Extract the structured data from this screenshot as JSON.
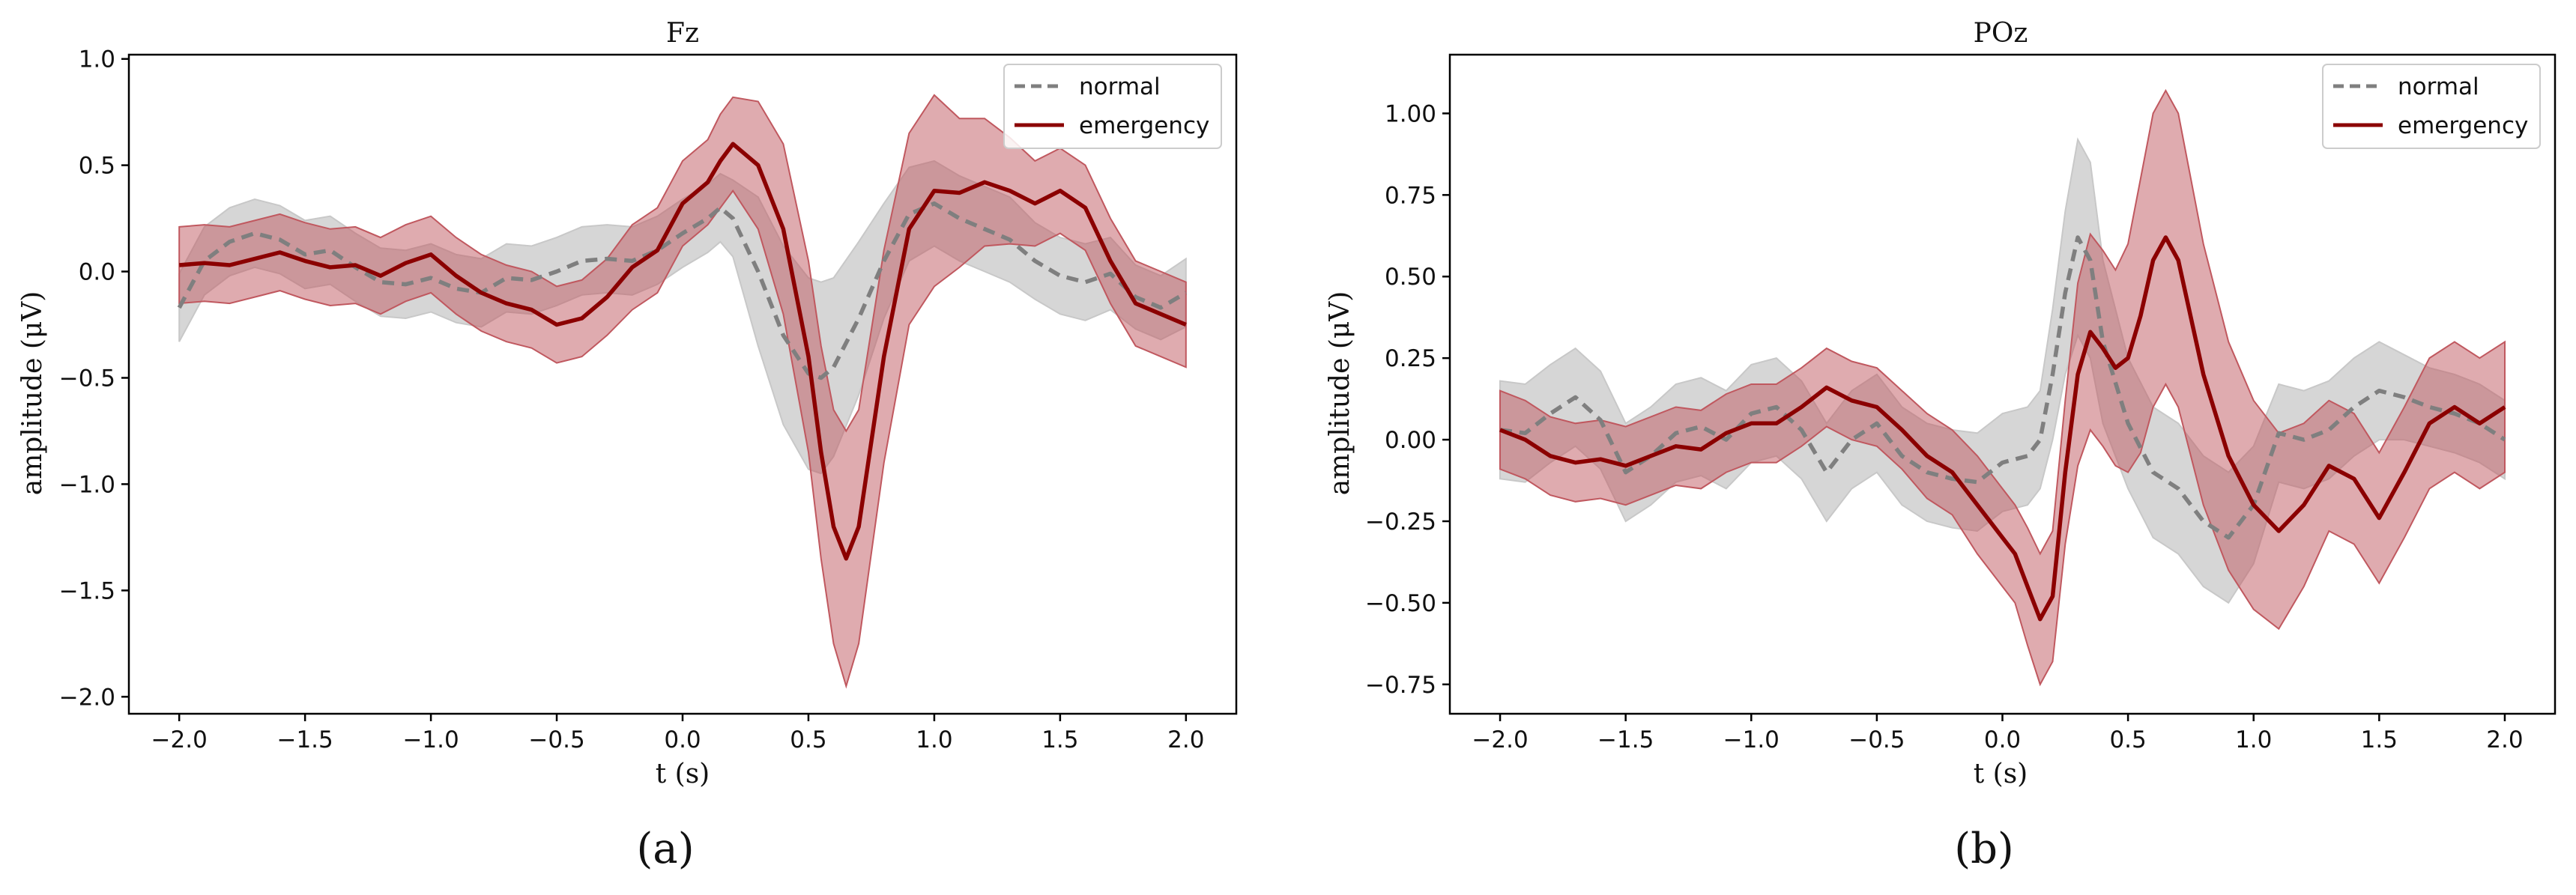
{
  "colors": {
    "normal_line": "#7f7f7f",
    "normal_band": "#c8c8c8",
    "emergency_line": "#8b0000",
    "emergency_band": "#c0585f",
    "axis": "#000000"
  },
  "chart_data": [
    {
      "type": "line",
      "panel": "(a)",
      "title": "Fz",
      "xlabel": "t (s)",
      "ylabel": "amplitude (μV)",
      "xlim": [
        -2.2,
        2.2
      ],
      "ylim": [
        -2.08,
        1.02
      ],
      "xticks": [
        -2.0,
        -1.5,
        -1.0,
        -0.5,
        0.0,
        0.5,
        1.0,
        1.5,
        2.0
      ],
      "xtick_labels": [
        "−2.0",
        "−1.5",
        "−1.0",
        "−0.5",
        "0.0",
        "0.5",
        "1.0",
        "1.5",
        "2.0"
      ],
      "yticks": [
        -2.0,
        -1.5,
        -1.0,
        -0.5,
        0.0,
        0.5,
        1.0
      ],
      "ytick_labels": [
        "−2.0",
        "−1.5",
        "−1.0",
        "−0.5",
        "0.0",
        "0.5",
        "1.0"
      ],
      "legend_position": "top-right",
      "series": [
        {
          "name": "normal",
          "style": "dashed",
          "points": [
            [
              -2.0,
              -0.17
            ],
            [
              -1.9,
              0.05
            ],
            [
              -1.8,
              0.14
            ],
            [
              -1.7,
              0.18
            ],
            [
              -1.6,
              0.15
            ],
            [
              -1.5,
              0.08
            ],
            [
              -1.4,
              0.1
            ],
            [
              -1.3,
              0.02
            ],
            [
              -1.2,
              -0.05
            ],
            [
              -1.1,
              -0.06
            ],
            [
              -1.0,
              -0.03
            ],
            [
              -0.9,
              -0.08
            ],
            [
              -0.8,
              -0.1
            ],
            [
              -0.7,
              -0.03
            ],
            [
              -0.6,
              -0.04
            ],
            [
              -0.5,
              0.0
            ],
            [
              -0.4,
              0.05
            ],
            [
              -0.3,
              0.06
            ],
            [
              -0.2,
              0.05
            ],
            [
              -0.1,
              0.1
            ],
            [
              0.0,
              0.18
            ],
            [
              0.1,
              0.25
            ],
            [
              0.15,
              0.3
            ],
            [
              0.2,
              0.25
            ],
            [
              0.3,
              0.0
            ],
            [
              0.4,
              -0.3
            ],
            [
              0.5,
              -0.48
            ],
            [
              0.55,
              -0.5
            ],
            [
              0.6,
              -0.45
            ],
            [
              0.7,
              -0.22
            ],
            [
              0.8,
              0.05
            ],
            [
              0.9,
              0.27
            ],
            [
              1.0,
              0.32
            ],
            [
              1.1,
              0.25
            ],
            [
              1.2,
              0.2
            ],
            [
              1.3,
              0.15
            ],
            [
              1.4,
              0.05
            ],
            [
              1.5,
              -0.02
            ],
            [
              1.6,
              -0.05
            ],
            [
              1.7,
              -0.01
            ],
            [
              1.8,
              -0.12
            ],
            [
              1.9,
              -0.17
            ],
            [
              2.0,
              -0.1
            ]
          ],
          "band": [
            0.16,
            0.16,
            0.16,
            0.16,
            0.16,
            0.16,
            0.16,
            0.16,
            0.16,
            0.16,
            0.16,
            0.16,
            0.16,
            0.16,
            0.16,
            0.16,
            0.16,
            0.16,
            0.16,
            0.16,
            0.16,
            0.16,
            0.16,
            0.18,
            0.35,
            0.42,
            0.45,
            0.45,
            0.42,
            0.36,
            0.27,
            0.22,
            0.2,
            0.2,
            0.2,
            0.2,
            0.18,
            0.18,
            0.18,
            0.17,
            0.15,
            0.15,
            0.16
          ]
        },
        {
          "name": "emergency",
          "style": "solid",
          "points": [
            [
              -2.0,
              0.03
            ],
            [
              -1.9,
              0.04
            ],
            [
              -1.8,
              0.03
            ],
            [
              -1.7,
              0.06
            ],
            [
              -1.6,
              0.09
            ],
            [
              -1.5,
              0.05
            ],
            [
              -1.4,
              0.02
            ],
            [
              -1.3,
              0.03
            ],
            [
              -1.2,
              -0.02
            ],
            [
              -1.1,
              0.04
            ],
            [
              -1.0,
              0.08
            ],
            [
              -0.9,
              -0.02
            ],
            [
              -0.8,
              -0.1
            ],
            [
              -0.7,
              -0.15
            ],
            [
              -0.6,
              -0.18
            ],
            [
              -0.5,
              -0.25
            ],
            [
              -0.4,
              -0.22
            ],
            [
              -0.3,
              -0.12
            ],
            [
              -0.2,
              0.02
            ],
            [
              -0.1,
              0.1
            ],
            [
              0.0,
              0.32
            ],
            [
              0.1,
              0.42
            ],
            [
              0.15,
              0.52
            ],
            [
              0.2,
              0.6
            ],
            [
              0.3,
              0.5
            ],
            [
              0.4,
              0.2
            ],
            [
              0.5,
              -0.4
            ],
            [
              0.55,
              -0.85
            ],
            [
              0.6,
              -1.2
            ],
            [
              0.65,
              -1.35
            ],
            [
              0.7,
              -1.2
            ],
            [
              0.8,
              -0.4
            ],
            [
              0.9,
              0.2
            ],
            [
              1.0,
              0.38
            ],
            [
              1.1,
              0.37
            ],
            [
              1.2,
              0.42
            ],
            [
              1.3,
              0.38
            ],
            [
              1.4,
              0.32
            ],
            [
              1.5,
              0.38
            ],
            [
              1.6,
              0.3
            ],
            [
              1.7,
              0.05
            ],
            [
              1.8,
              -0.15
            ],
            [
              1.9,
              -0.2
            ],
            [
              2.0,
              -0.25
            ]
          ],
          "band": [
            0.18,
            0.18,
            0.18,
            0.18,
            0.18,
            0.18,
            0.18,
            0.18,
            0.18,
            0.18,
            0.18,
            0.18,
            0.18,
            0.18,
            0.18,
            0.18,
            0.18,
            0.18,
            0.2,
            0.2,
            0.2,
            0.2,
            0.22,
            0.22,
            0.3,
            0.4,
            0.45,
            0.5,
            0.55,
            0.6,
            0.55,
            0.5,
            0.45,
            0.45,
            0.35,
            0.3,
            0.25,
            0.2,
            0.2,
            0.2,
            0.2,
            0.2,
            0.2,
            0.2
          ]
        }
      ],
      "caption": "(a)"
    },
    {
      "type": "line",
      "panel": "(b)",
      "title": "POz",
      "xlabel": "t (s)",
      "ylabel": "amplitude (μV)",
      "xlim": [
        -2.2,
        2.2
      ],
      "ylim": [
        -0.84,
        1.18
      ],
      "xticks": [
        -2.0,
        -1.5,
        -1.0,
        -0.5,
        0.0,
        0.5,
        1.0,
        1.5,
        2.0
      ],
      "xtick_labels": [
        "−2.0",
        "−1.5",
        "−1.0",
        "−0.5",
        "0.0",
        "0.5",
        "1.0",
        "1.5",
        "2.0"
      ],
      "yticks": [
        -0.75,
        -0.5,
        -0.25,
        0.0,
        0.25,
        0.5,
        0.75,
        1.0
      ],
      "ytick_labels": [
        "−0.75",
        "−0.50",
        "−0.25",
        "0.00",
        "0.25",
        "0.50",
        "0.75",
        "1.00"
      ],
      "legend_position": "top-right",
      "series": [
        {
          "name": "normal",
          "style": "dashed",
          "points": [
            [
              -2.0,
              0.03
            ],
            [
              -1.9,
              0.02
            ],
            [
              -1.8,
              0.08
            ],
            [
              -1.7,
              0.13
            ],
            [
              -1.6,
              0.06
            ],
            [
              -1.5,
              -0.1
            ],
            [
              -1.4,
              -0.05
            ],
            [
              -1.3,
              0.02
            ],
            [
              -1.2,
              0.04
            ],
            [
              -1.1,
              0.0
            ],
            [
              -1.0,
              0.08
            ],
            [
              -0.9,
              0.1
            ],
            [
              -0.8,
              0.03
            ],
            [
              -0.7,
              -0.1
            ],
            [
              -0.6,
              0.0
            ],
            [
              -0.5,
              0.05
            ],
            [
              -0.4,
              -0.05
            ],
            [
              -0.3,
              -0.1
            ],
            [
              -0.2,
              -0.12
            ],
            [
              -0.1,
              -0.13
            ],
            [
              0.0,
              -0.07
            ],
            [
              0.1,
              -0.05
            ],
            [
              0.15,
              0.0
            ],
            [
              0.2,
              0.2
            ],
            [
              0.25,
              0.45
            ],
            [
              0.3,
              0.62
            ],
            [
              0.35,
              0.55
            ],
            [
              0.4,
              0.3
            ],
            [
              0.5,
              0.05
            ],
            [
              0.6,
              -0.1
            ],
            [
              0.7,
              -0.15
            ],
            [
              0.8,
              -0.25
            ],
            [
              0.9,
              -0.3
            ],
            [
              1.0,
              -0.2
            ],
            [
              1.1,
              0.02
            ],
            [
              1.2,
              0.0
            ],
            [
              1.3,
              0.03
            ],
            [
              1.4,
              0.1
            ],
            [
              1.5,
              0.15
            ],
            [
              1.6,
              0.13
            ],
            [
              1.7,
              0.1
            ],
            [
              1.8,
              0.08
            ],
            [
              1.9,
              0.05
            ],
            [
              2.0,
              0.0
            ]
          ],
          "band": [
            0.15,
            0.15,
            0.15,
            0.15,
            0.15,
            0.15,
            0.15,
            0.15,
            0.15,
            0.15,
            0.15,
            0.15,
            0.15,
            0.15,
            0.15,
            0.15,
            0.15,
            0.15,
            0.15,
            0.15,
            0.15,
            0.15,
            0.15,
            0.2,
            0.25,
            0.3,
            0.3,
            0.25,
            0.2,
            0.2,
            0.2,
            0.2,
            0.2,
            0.18,
            0.15,
            0.15,
            0.15,
            0.15,
            0.15,
            0.13,
            0.12,
            0.12,
            0.12,
            0.12
          ]
        },
        {
          "name": "emergency",
          "style": "solid",
          "points": [
            [
              -2.0,
              0.03
            ],
            [
              -1.9,
              0.0
            ],
            [
              -1.8,
              -0.05
            ],
            [
              -1.7,
              -0.07
            ],
            [
              -1.6,
              -0.06
            ],
            [
              -1.5,
              -0.08
            ],
            [
              -1.4,
              -0.05
            ],
            [
              -1.3,
              -0.02
            ],
            [
              -1.2,
              -0.03
            ],
            [
              -1.1,
              0.02
            ],
            [
              -1.0,
              0.05
            ],
            [
              -0.9,
              0.05
            ],
            [
              -0.8,
              0.1
            ],
            [
              -0.7,
              0.16
            ],
            [
              -0.6,
              0.12
            ],
            [
              -0.5,
              0.1
            ],
            [
              -0.4,
              0.03
            ],
            [
              -0.3,
              -0.05
            ],
            [
              -0.2,
              -0.1
            ],
            [
              -0.1,
              -0.2
            ],
            [
              0.0,
              -0.3
            ],
            [
              0.05,
              -0.35
            ],
            [
              0.1,
              -0.45
            ],
            [
              0.15,
              -0.55
            ],
            [
              0.2,
              -0.48
            ],
            [
              0.25,
              -0.1
            ],
            [
              0.3,
              0.2
            ],
            [
              0.35,
              0.33
            ],
            [
              0.4,
              0.28
            ],
            [
              0.45,
              0.22
            ],
            [
              0.5,
              0.25
            ],
            [
              0.55,
              0.38
            ],
            [
              0.6,
              0.55
            ],
            [
              0.65,
              0.62
            ],
            [
              0.7,
              0.55
            ],
            [
              0.8,
              0.2
            ],
            [
              0.9,
              -0.05
            ],
            [
              1.0,
              -0.2
            ],
            [
              1.1,
              -0.28
            ],
            [
              1.2,
              -0.2
            ],
            [
              1.3,
              -0.08
            ],
            [
              1.4,
              -0.12
            ],
            [
              1.5,
              -0.24
            ],
            [
              1.6,
              -0.1
            ],
            [
              1.7,
              0.05
            ],
            [
              1.8,
              0.1
            ],
            [
              1.9,
              0.05
            ],
            [
              2.0,
              0.1
            ]
          ],
          "band": [
            0.12,
            0.12,
            0.12,
            0.12,
            0.12,
            0.12,
            0.12,
            0.12,
            0.12,
            0.12,
            0.12,
            0.12,
            0.12,
            0.12,
            0.12,
            0.12,
            0.12,
            0.13,
            0.13,
            0.15,
            0.15,
            0.15,
            0.18,
            0.2,
            0.2,
            0.22,
            0.28,
            0.3,
            0.3,
            0.3,
            0.35,
            0.42,
            0.45,
            0.45,
            0.45,
            0.4,
            0.35,
            0.32,
            0.3,
            0.25,
            0.2,
            0.2,
            0.2,
            0.2,
            0.2,
            0.2,
            0.2,
            0.2
          ]
        }
      ],
      "caption": "(b)"
    }
  ]
}
